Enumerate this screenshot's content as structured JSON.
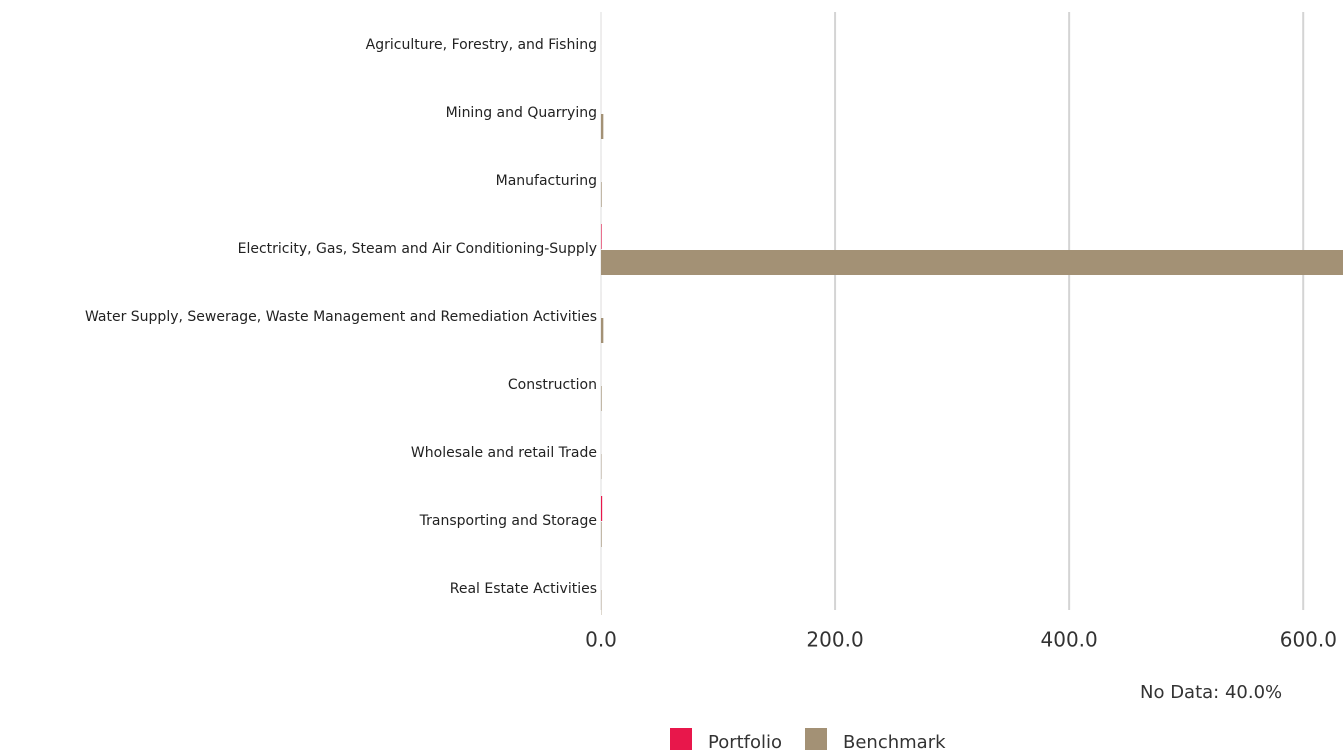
{
  "chart_data": {
    "type": "barh",
    "categories": [
      "Agriculture, Forestry, and Fishing",
      "Mining and Quarrying",
      "Manufacturing",
      "Electricity, Gas, Steam and Air Conditioning-Supply",
      "Water Supply, Sewerage, Waste Management and Remediation Activities",
      "Construction",
      "Wholesale and retail Trade",
      "Transporting and Storage",
      "Real Estate Activities"
    ],
    "series": [
      {
        "name": "Portfolio",
        "color": "#e8174b",
        "values": [
          0,
          0,
          0,
          0.5,
          0,
          0,
          0,
          1,
          0
        ]
      },
      {
        "name": "Benchmark",
        "color": "#a39175",
        "values": [
          0,
          2,
          0.5,
          634,
          2,
          0.5,
          0.3,
          0.5,
          0.3
        ]
      }
    ],
    "xlim": [
      0,
      634
    ],
    "xticks": [
      {
        "value": 0,
        "label": "0.0"
      },
      {
        "value": 200,
        "label": "200.0"
      },
      {
        "value": 400,
        "label": "400.0"
      },
      {
        "value": 600,
        "label": "600.0"
      }
    ],
    "grid": true,
    "annotation": "No Data: 40.0%"
  }
}
